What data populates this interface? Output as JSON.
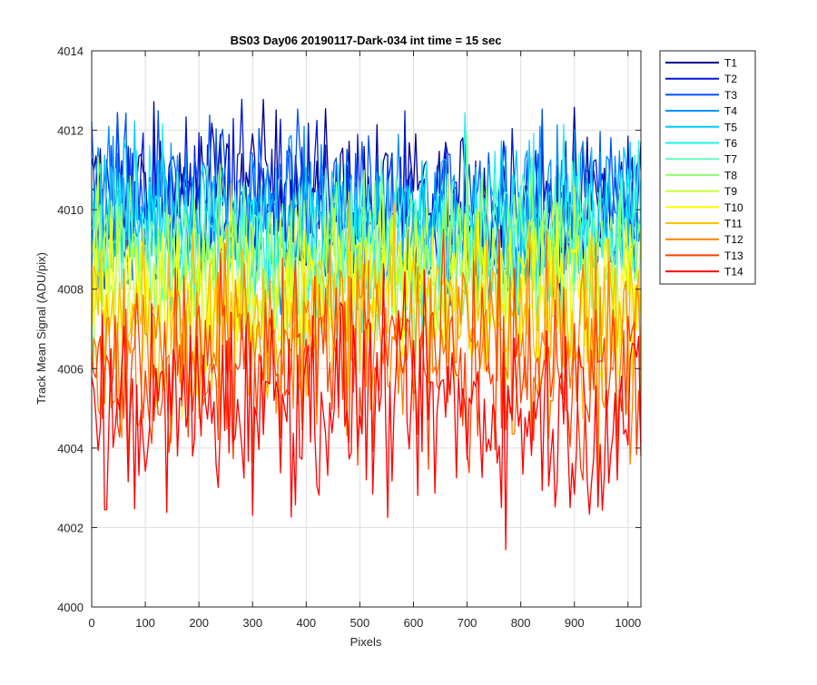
{
  "chart_data": {
    "type": "line",
    "title": "BS03 Day06 20190117-Dark-034 int time = 15 sec",
    "xlabel": "Pixels",
    "ylabel": "Track Mean Signal (ADU/pix)",
    "xlim": [
      0,
      1024
    ],
    "ylim": [
      4000,
      4014
    ],
    "xticks": [
      0,
      100,
      200,
      300,
      400,
      500,
      600,
      700,
      800,
      900,
      1000
    ],
    "yticks": [
      4000,
      4002,
      4004,
      4006,
      4008,
      4010,
      4012,
      4014
    ],
    "grid": true,
    "legend_position": "outside top-right",
    "sample_step": 4,
    "series": [
      {
        "name": "T1",
        "color": "#00008f",
        "mean": 4010.3,
        "spread": 1.0
      },
      {
        "name": "T2",
        "color": "#0016d9",
        "mean": 4010.15,
        "spread": 1.0
      },
      {
        "name": "T3",
        "color": "#0050ff",
        "mean": 4010.0,
        "spread": 1.05
      },
      {
        "name": "T4",
        "color": "#008fff",
        "mean": 4009.85,
        "spread": 1.05
      },
      {
        "name": "T5",
        "color": "#00c8ff",
        "mean": 4009.7,
        "spread": 1.05
      },
      {
        "name": "T6",
        "color": "#20f0f0",
        "mean": 4009.4,
        "spread": 1.05
      },
      {
        "name": "T7",
        "color": "#60ffc0",
        "mean": 4009.1,
        "spread": 1.1
      },
      {
        "name": "T8",
        "color": "#90ff70",
        "mean": 4008.7,
        "spread": 1.1
      },
      {
        "name": "T9",
        "color": "#c8ff30",
        "mean": 4008.3,
        "spread": 1.1
      },
      {
        "name": "T10",
        "color": "#ffff00",
        "mean": 4007.8,
        "spread": 1.15
      },
      {
        "name": "T11",
        "color": "#ffbf00",
        "mean": 4007.3,
        "spread": 1.15
      },
      {
        "name": "T12",
        "color": "#ff7f00",
        "mean": 4006.6,
        "spread": 1.2
      },
      {
        "name": "T13",
        "color": "#ff4000",
        "mean": 4006.0,
        "spread": 1.2
      },
      {
        "name": "T14",
        "color": "#ff0000",
        "mean": 4005.0,
        "spread": 1.3
      }
    ]
  }
}
